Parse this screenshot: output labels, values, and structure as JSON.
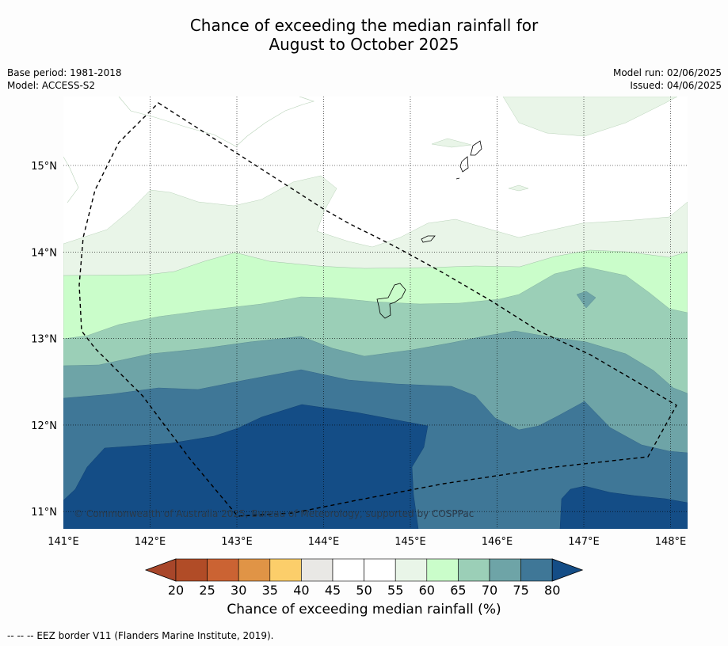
{
  "title": {
    "line1": "Chance of exceeding the median rainfall for",
    "line2": "August to October 2025"
  },
  "metadata": {
    "base_period": "Base period: 1981-2018",
    "model": "Model: ACCESS-S2",
    "model_run": "Model run: 02/06/2025",
    "issued": "Issued: 04/06/2025"
  },
  "map": {
    "longitude_labels": [
      "141°E",
      "142°E",
      "143°E",
      "144°E",
      "145°E",
      "146°E",
      "147°E",
      "148°E"
    ],
    "latitude_labels": [
      "15°N",
      "14°N",
      "13°N",
      "12°N",
      "11°N"
    ],
    "lon_range": [
      141.0,
      148.2
    ],
    "lat_range": [
      10.8,
      15.8
    ],
    "copyright": "© Commonwealth of Australia 2025, Bureau of Meteorology, supported by COSPPac",
    "eez_border_style": "dashed"
  },
  "colorbar": {
    "tick_labels": [
      "20",
      "25",
      "30",
      "35",
      "40",
      "45",
      "50",
      "55",
      "60",
      "65",
      "70",
      "75",
      "80"
    ],
    "colors": [
      "#a8462a",
      "#b14c27",
      "#cb6333",
      "#e09446",
      "#fcce6a",
      "#e9e8e5",
      "#ffffff",
      "#ffffff",
      "#e9f5e8",
      "#cafdca",
      "#9bcfb7",
      "#6ea4a7",
      "#3f7797",
      "#144d86"
    ],
    "title": "Chance of exceeding median rainfall (%)"
  },
  "footnote": "-- -- -- EEZ border V11 (Flanders Marine Institute, 2019)."
}
